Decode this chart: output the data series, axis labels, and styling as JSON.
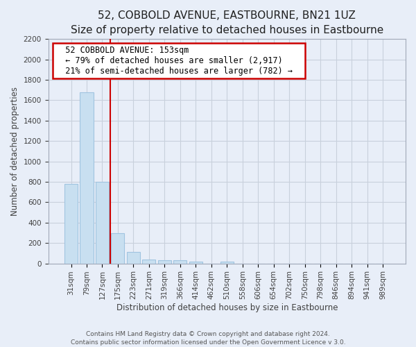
{
  "title": "52, COBBOLD AVENUE, EASTBOURNE, BN21 1UZ",
  "subtitle": "Size of property relative to detached houses in Eastbourne",
  "xlabel": "Distribution of detached houses by size in Eastbourne",
  "ylabel": "Number of detached properties",
  "footer_line1": "Contains HM Land Registry data © Crown copyright and database right 2024.",
  "footer_line2": "Contains public sector information licensed under the Open Government Licence v 3.0.",
  "categories": [
    "31sqm",
    "79sqm",
    "127sqm",
    "175sqm",
    "223sqm",
    "271sqm",
    "319sqm",
    "366sqm",
    "414sqm",
    "462sqm",
    "510sqm",
    "558sqm",
    "606sqm",
    "654sqm",
    "702sqm",
    "750sqm",
    "798sqm",
    "846sqm",
    "894sqm",
    "941sqm",
    "989sqm"
  ],
  "values": [
    780,
    1680,
    800,
    300,
    115,
    38,
    30,
    30,
    20,
    0,
    15,
    0,
    0,
    0,
    0,
    0,
    0,
    0,
    0,
    0,
    0
  ],
  "bar_color": "#c8dff0",
  "bar_edge_color": "#a0c4e0",
  "property_line_x": 2.5,
  "annotation_title": "52 COBBOLD AVENUE: 153sqm",
  "annotation_line1": "← 79% of detached houses are smaller (2,917)",
  "annotation_line2": "21% of semi-detached houses are larger (782) →",
  "annotation_box_facecolor": "#ffffff",
  "annotation_box_edgecolor": "#cc0000",
  "line_color": "#cc0000",
  "ylim": [
    0,
    2200
  ],
  "yticks": [
    0,
    200,
    400,
    600,
    800,
    1000,
    1200,
    1400,
    1600,
    1800,
    2000,
    2200
  ],
  "background_color": "#e8eef8",
  "grid_color": "#c8d0dc",
  "spine_color": "#a0a8b8",
  "tick_color": "#404040",
  "title_fontsize": 11,
  "subtitle_fontsize": 9,
  "axis_label_fontsize": 8.5,
  "tick_fontsize": 7.5,
  "annotation_fontsize": 8.5,
  "footer_fontsize": 6.5
}
